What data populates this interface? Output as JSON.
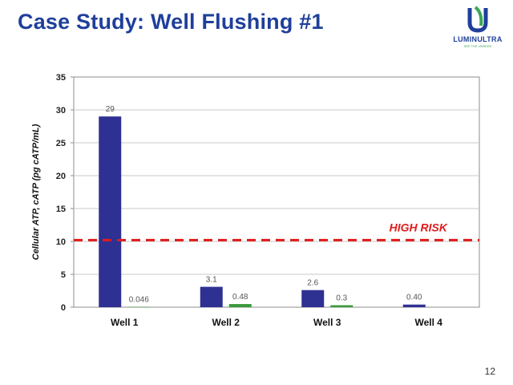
{
  "slide": {
    "title": "Case Study: Well Flushing #1",
    "page_number": "12"
  },
  "logo": {
    "word": "LUMINULTRA",
    "tagline": "SEE THE UNSEEN",
    "colors": {
      "blue": "#1f3f9a",
      "green": "#3aa657"
    }
  },
  "colors": {
    "series_primary": "#2e3192",
    "series_secondary": "#3b9a3b",
    "threshold": "#e01b1b",
    "title": "#1f3f9a"
  },
  "chart_data": {
    "type": "bar",
    "title": "",
    "xlabel": "",
    "ylabel": "Cellular ATP, cATP (pg cATP/mL)",
    "ylim": [
      0,
      35
    ],
    "yticks": [
      "0",
      "5",
      "10",
      "15",
      "20",
      "25",
      "30",
      "35"
    ],
    "grid": true,
    "categories": [
      "Well 1",
      "Well 2",
      "Well 3",
      "Well 4"
    ],
    "series": [
      {
        "values": [
          29,
          3.1,
          2.6,
          0.4
        ],
        "labels": [
          "29",
          "3.1",
          "2.6",
          "0.40"
        ]
      },
      {
        "values": [
          0.046,
          0.48,
          0.3,
          null
        ],
        "labels": [
          "0.046",
          "0.48",
          "0.3",
          ""
        ]
      }
    ],
    "threshold": {
      "value": 10.2,
      "label": "HIGH RISK"
    }
  }
}
